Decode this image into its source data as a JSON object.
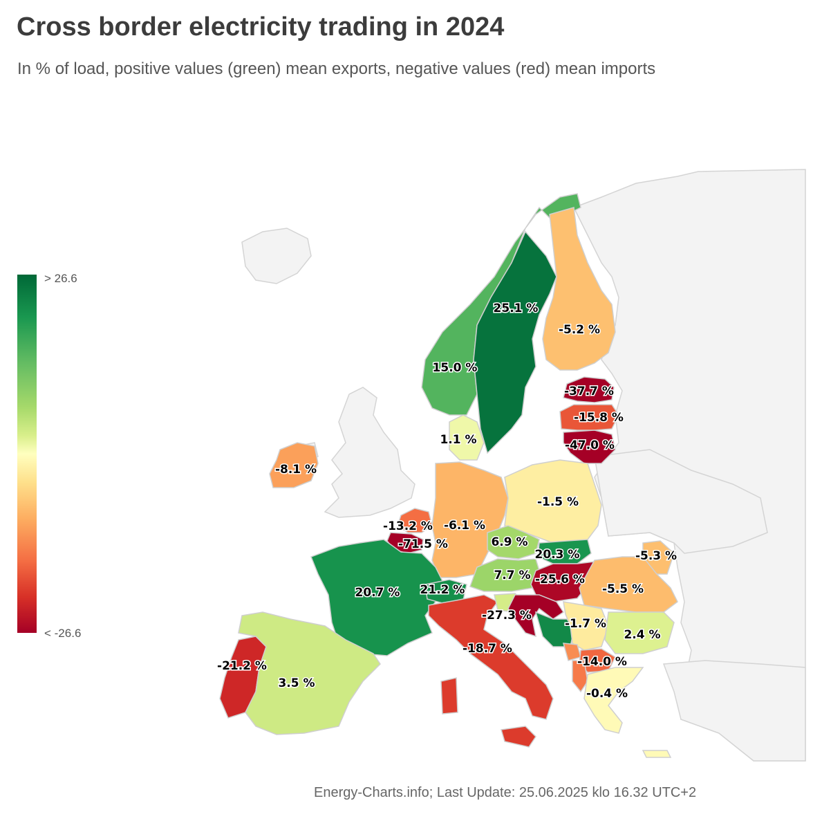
{
  "title": "Cross border electricity trading in 2024",
  "subtitle": "In % of load, positive values (green) mean exports, negative values (red) mean imports",
  "legend": {
    "max_label": "> 26.6",
    "min_label": "< -26.6",
    "max": 26.6,
    "min": -26.6
  },
  "footer": "Energy-Charts.info; Last Update: 25.06.2025 klo 16.32 UTC+2",
  "regions": [
    {
      "id": "norway",
      "value": 15.0,
      "label": "15.0 %"
    },
    {
      "id": "sweden",
      "value": 25.1,
      "label": "25.1 %"
    },
    {
      "id": "finland",
      "value": -5.2,
      "label": "-5.2 %"
    },
    {
      "id": "estonia",
      "value": -37.7,
      "label": "-37.7 %"
    },
    {
      "id": "latvia",
      "value": -15.8,
      "label": "-15.8 %"
    },
    {
      "id": "lithuania",
      "value": -47.0,
      "label": "-47.0 %"
    },
    {
      "id": "denmark",
      "value": 1.1,
      "label": "1.1 %"
    },
    {
      "id": "ireland",
      "value": -8.1,
      "label": "-8.1 %"
    },
    {
      "id": "netherlands",
      "value": -13.2,
      "label": "-13.2 %"
    },
    {
      "id": "luxembourg",
      "value": -71.5,
      "label": "-71.5 %"
    },
    {
      "id": "germany",
      "value": -6.1,
      "label": "-6.1 %"
    },
    {
      "id": "poland",
      "value": -1.5,
      "label": "-1.5 %"
    },
    {
      "id": "czechia",
      "value": 6.9,
      "label": "6.9 %"
    },
    {
      "id": "slovakia",
      "value": 20.3,
      "label": "20.3 %"
    },
    {
      "id": "austria",
      "value": 7.7,
      "label": "7.7 %"
    },
    {
      "id": "hungary",
      "value": -25.6,
      "label": "-25.6 %"
    },
    {
      "id": "moldova",
      "value": -5.3,
      "label": "-5.3 %"
    },
    {
      "id": "romania",
      "value": -5.5,
      "label": "-5.5 %"
    },
    {
      "id": "france",
      "value": 20.7,
      "label": "20.7 %"
    },
    {
      "id": "switzerland",
      "value": 21.2,
      "label": "21.2 %"
    },
    {
      "id": "italy",
      "value": -18.7,
      "label": "-18.7 %"
    },
    {
      "id": "croatia",
      "value": -27.3,
      "label": "-27.3 %"
    },
    {
      "id": "serbia",
      "value": -1.7,
      "label": "-1.7 %"
    },
    {
      "id": "bulgaria",
      "value": 2.4,
      "label": "2.4 %"
    },
    {
      "id": "north-macedonia",
      "value": -14.0,
      "label": "-14.0 %"
    },
    {
      "id": "greece",
      "value": -0.4,
      "label": "-0.4 %"
    },
    {
      "id": "portugal",
      "value": -21.2,
      "label": "-21.2 %"
    },
    {
      "id": "spain",
      "value": 3.5,
      "label": "3.5 %"
    }
  ]
}
